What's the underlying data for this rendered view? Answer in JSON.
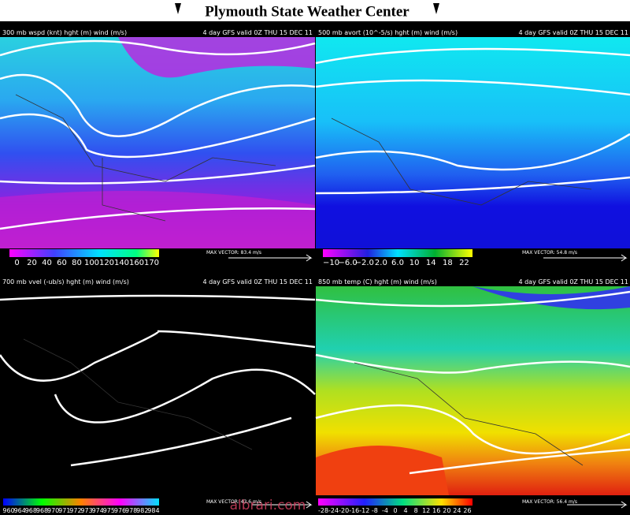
{
  "header": {
    "title": "Plymouth State Weather Center"
  },
  "panels": [
    {
      "header_left": "300 mb wspd (knt) hght (m) wind (m/s)",
      "header_right": "4 day GFS valid 0Z THU 15 DEC 11",
      "max_vector": "MAX VECTOR: 83.4 m/s",
      "colorbar_labels": [
        "0",
        "20",
        "40",
        "60",
        "80",
        "100",
        "120",
        "140",
        "160",
        "170"
      ]
    },
    {
      "header_left": "500 mb avort (10^-5/s) hght (m) wind (m/s)",
      "header_right": "4 day GFS valid 0Z THU 15 DEC 11",
      "max_vector": "MAX VECTOR: 54.8 m/s",
      "colorbar_labels": [
        "−10",
        "−6.0",
        "−2.0",
        "2.0",
        "6.0",
        "10",
        "14",
        "18",
        "22"
      ]
    },
    {
      "header_left": "700 mb vvel (-ub/s) hght (m) wind (m/s)",
      "header_right": "4 day GFS valid 0Z THU 15 DEC 11",
      "max_vector": "MAX VECTOR: 43.6 m/s",
      "colorbar_labels": [
        "960",
        "964",
        "968",
        "968",
        "970",
        "971",
        "972",
        "973",
        "974",
        "975",
        "976",
        "978",
        "982",
        "984"
      ]
    },
    {
      "header_left": "850 mb temp (C) hght (m) wind (m/s)",
      "header_right": "4 day GFS valid 0Z THU 15 DEC 11",
      "max_vector": "MAX VECTOR: 56.4 m/s",
      "colorbar_labels": [
        "-28",
        "-24",
        "-20",
        "-16",
        "-12",
        "-8",
        "-4",
        "0",
        "4",
        "8",
        "12",
        "16",
        "20",
        "24",
        "26"
      ]
    }
  ],
  "watermark": "albrari.com"
}
